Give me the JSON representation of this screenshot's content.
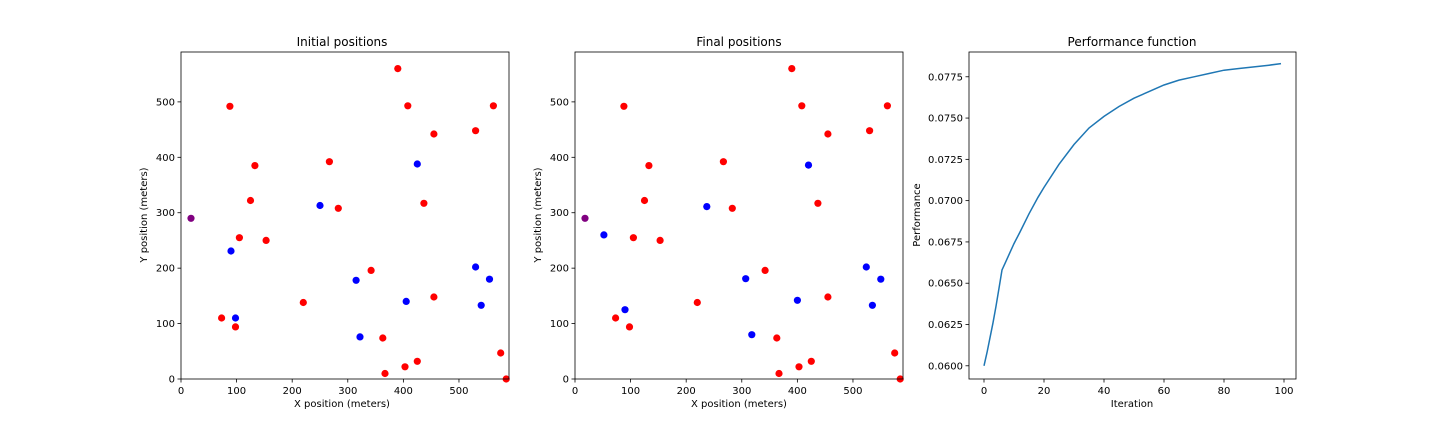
{
  "chart_data": [
    {
      "type": "scatter",
      "title": "Initial positions",
      "xlabel": "X position (meters)",
      "ylabel": "Y position (meters)",
      "xlim": [
        0,
        590
      ],
      "ylim": [
        0,
        590
      ],
      "xticks": [
        0,
        100,
        200,
        300,
        400,
        500
      ],
      "yticks": [
        0,
        100,
        200,
        300,
        400,
        500
      ],
      "series": [
        {
          "color": "#ff0000",
          "points": [
            [
              390,
              560
            ],
            [
              88,
              492
            ],
            [
              408,
              493
            ],
            [
              562,
              493
            ],
            [
              530,
              448
            ],
            [
              455,
              442
            ],
            [
              267,
              392
            ],
            [
              133,
              385
            ],
            [
              125,
              322
            ],
            [
              437,
              317
            ],
            [
              283,
              308
            ],
            [
              105,
              255
            ],
            [
              153,
              250
            ],
            [
              342,
              196
            ],
            [
              220,
              138
            ],
            [
              455,
              148
            ],
            [
              73,
              110
            ],
            [
              98,
              94
            ],
            [
              363,
              74
            ],
            [
              575,
              47
            ],
            [
              425,
              32
            ],
            [
              403,
              22
            ],
            [
              367,
              10
            ],
            [
              585,
              0
            ]
          ]
        },
        {
          "color": "#0000ff",
          "points": [
            [
              425,
              388
            ],
            [
              250,
              313
            ],
            [
              90,
              231
            ],
            [
              315,
              178
            ],
            [
              530,
              202
            ],
            [
              555,
              180
            ],
            [
              98,
              110
            ],
            [
              405,
              140
            ],
            [
              540,
              133
            ],
            [
              322,
              76
            ]
          ]
        },
        {
          "color": "#800080",
          "points": [
            [
              18,
              290
            ]
          ]
        }
      ]
    },
    {
      "type": "scatter",
      "title": "Final positions",
      "xlabel": "X position (meters)",
      "ylabel": "Y position (meters)",
      "xlim": [
        0,
        590
      ],
      "ylim": [
        0,
        590
      ],
      "xticks": [
        0,
        100,
        200,
        300,
        400,
        500
      ],
      "yticks": [
        0,
        100,
        200,
        300,
        400,
        500
      ],
      "series": [
        {
          "color": "#ff0000",
          "points": [
            [
              390,
              560
            ],
            [
              88,
              492
            ],
            [
              408,
              493
            ],
            [
              562,
              493
            ],
            [
              530,
              448
            ],
            [
              455,
              442
            ],
            [
              267,
              392
            ],
            [
              133,
              385
            ],
            [
              125,
              322
            ],
            [
              437,
              317
            ],
            [
              283,
              308
            ],
            [
              105,
              255
            ],
            [
              153,
              250
            ],
            [
              342,
              196
            ],
            [
              220,
              138
            ],
            [
              455,
              148
            ],
            [
              73,
              110
            ],
            [
              98,
              94
            ],
            [
              363,
              74
            ],
            [
              575,
              47
            ],
            [
              425,
              32
            ],
            [
              403,
              22
            ],
            [
              367,
              10
            ],
            [
              585,
              0
            ]
          ]
        },
        {
          "color": "#0000ff",
          "points": [
            [
              420,
              386
            ],
            [
              237,
              311
            ],
            [
              52,
              260
            ],
            [
              307,
              181
            ],
            [
              524,
              202
            ],
            [
              550,
              180
            ],
            [
              90,
              125
            ],
            [
              400,
              142
            ],
            [
              535,
              133
            ],
            [
              318,
              80
            ]
          ]
        },
        {
          "color": "#800080",
          "points": [
            [
              18,
              290
            ]
          ]
        }
      ]
    },
    {
      "type": "line",
      "title": "Performance function",
      "xlabel": "Iteration",
      "ylabel": "Performance",
      "xlim": [
        -5,
        104
      ],
      "ylim": [
        0.0592,
        0.079
      ],
      "xticks": [
        0,
        20,
        40,
        60,
        80,
        100
      ],
      "yticks": [
        "0.0600",
        "0.0625",
        "0.0650",
        "0.0675",
        "0.0700",
        "0.0725",
        "0.0750",
        "0.0775"
      ],
      "color": "#1f77b4",
      "x": [
        0,
        1,
        2,
        3,
        4,
        5,
        6,
        7,
        8,
        10,
        12,
        15,
        18,
        20,
        25,
        30,
        35,
        40,
        45,
        50,
        55,
        60,
        65,
        70,
        75,
        80,
        85,
        90,
        95,
        99
      ],
      "y": [
        0.06,
        0.0608,
        0.0617,
        0.0626,
        0.0636,
        0.0647,
        0.0658,
        0.0662,
        0.0666,
        0.0674,
        0.0681,
        0.0692,
        0.0702,
        0.0708,
        0.0722,
        0.0734,
        0.0744,
        0.0751,
        0.0757,
        0.0762,
        0.0766,
        0.077,
        0.0773,
        0.0775,
        0.0777,
        0.0779,
        0.078,
        0.0781,
        0.0782,
        0.0783
      ]
    }
  ]
}
